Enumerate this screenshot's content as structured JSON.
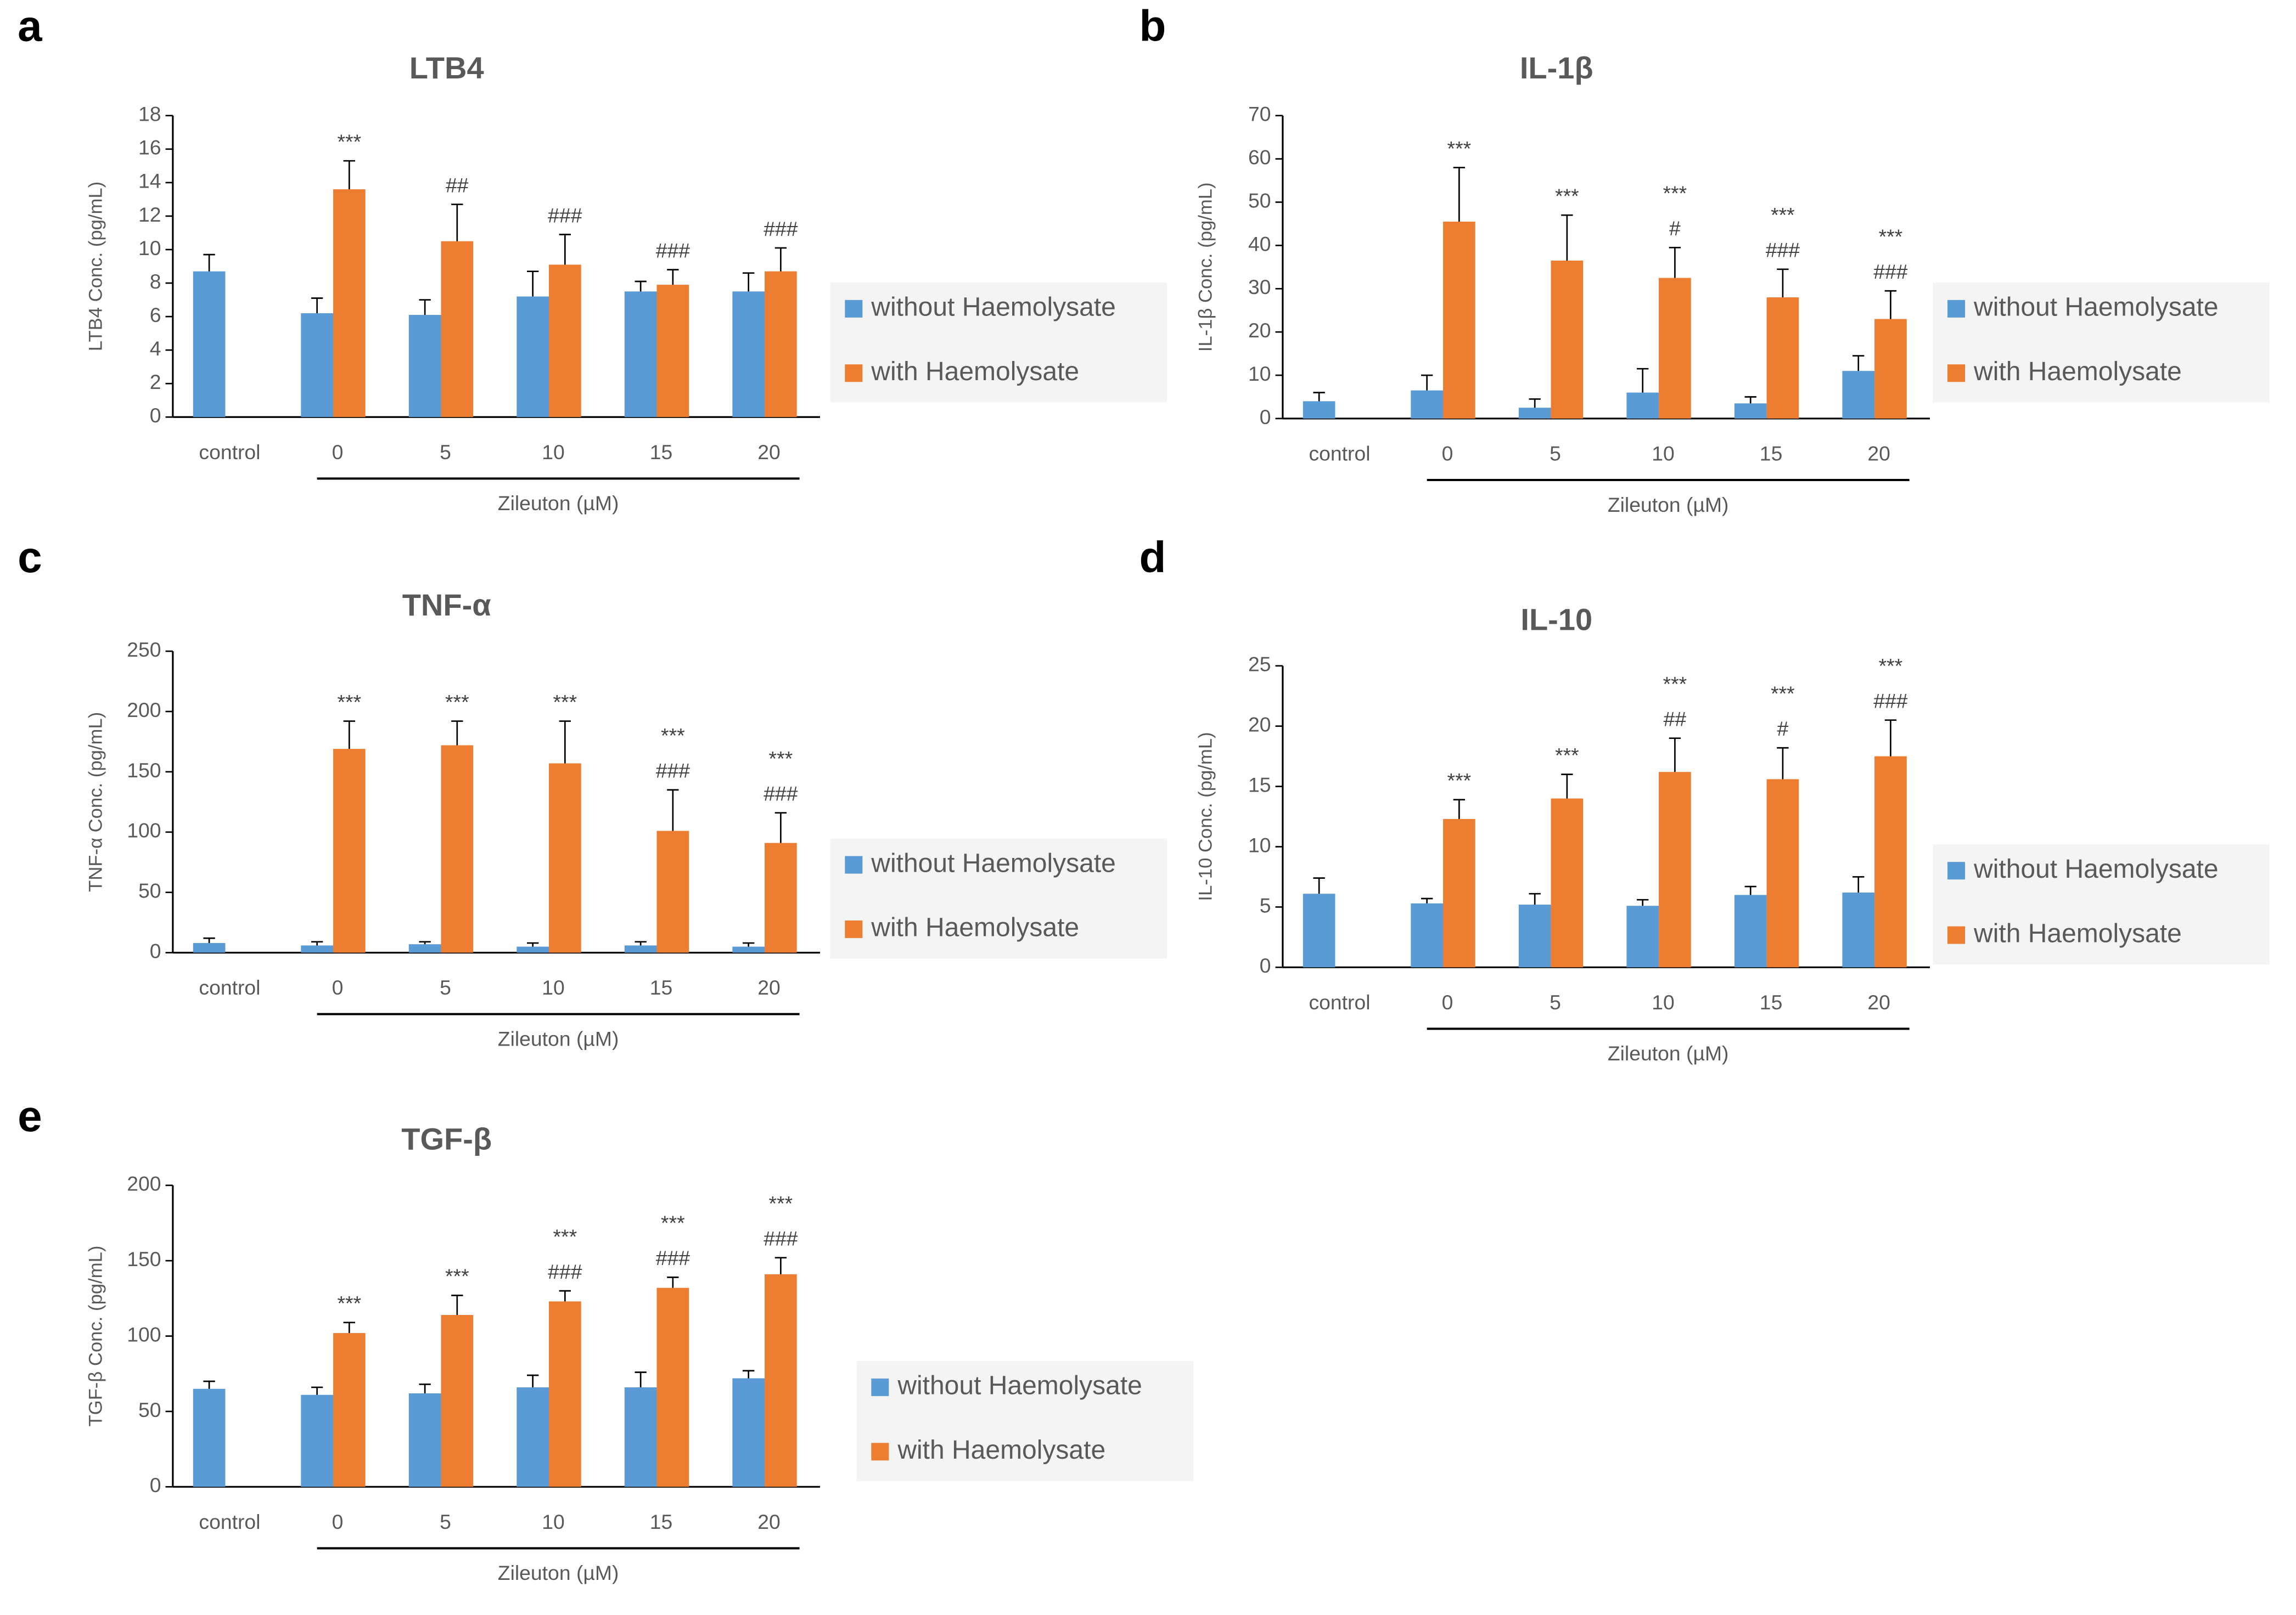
{
  "chart_data": [
    {
      "type": "bar",
      "panel": "a",
      "title": "LTB4",
      "y_label": "LTB4 Conc. (pg/mL)",
      "x_label": "Zileuton (µM)",
      "categories": [
        "control",
        "0",
        "5",
        "10",
        "15",
        "20"
      ],
      "series": [
        {
          "name": "without Haemolysate",
          "color": "#5b9bd5",
          "values": [
            8.7,
            6.2,
            6.1,
            7.2,
            7.5,
            7.5
          ],
          "errors": [
            1.0,
            0.9,
            0.9,
            1.5,
            0.6,
            1.1
          ]
        },
        {
          "name": "with Haemolysate",
          "color": "#ed7d31",
          "values": [
            null,
            13.6,
            10.5,
            9.1,
            7.9,
            8.7
          ],
          "errors": [
            null,
            1.7,
            2.2,
            1.8,
            0.9,
            1.4
          ]
        }
      ],
      "annotations": [
        null,
        [
          "***"
        ],
        [
          "##"
        ],
        [
          "###"
        ],
        [
          "###"
        ],
        [
          "###"
        ]
      ],
      "ylim": [
        0,
        18
      ],
      "yticks": [
        0,
        2,
        4,
        6,
        8,
        10,
        12,
        14,
        16,
        18
      ]
    },
    {
      "type": "bar",
      "panel": "b",
      "title": "IL-1β",
      "y_label": "IL-1β Conc. (pg/mL)",
      "x_label": "Zileuton (µM)",
      "categories": [
        "control",
        "0",
        "5",
        "10",
        "15",
        "20"
      ],
      "series": [
        {
          "name": "without Haemolysate",
          "color": "#5b9bd5",
          "values": [
            4,
            6.5,
            2.5,
            6,
            3.5,
            11
          ],
          "errors": [
            2,
            3.5,
            2,
            5.5,
            1.5,
            3.5
          ]
        },
        {
          "name": "with Haemolysate",
          "color": "#ed7d31",
          "values": [
            null,
            45.5,
            36.5,
            32.5,
            28,
            23
          ],
          "errors": [
            null,
            12.5,
            10.5,
            7,
            6.5,
            6.5
          ]
        }
      ],
      "annotations": [
        null,
        [
          "***"
        ],
        [
          "***"
        ],
        [
          "***",
          "#"
        ],
        [
          "***",
          "###"
        ],
        [
          "***",
          "###"
        ]
      ],
      "ylim": [
        0,
        70
      ],
      "yticks": [
        0,
        10,
        20,
        30,
        40,
        50,
        60,
        70
      ]
    },
    {
      "type": "bar",
      "panel": "c",
      "title": "TNF-α",
      "y_label": "TNF-α Conc. (pg/mL)",
      "x_label": "Zileuton (µM)",
      "categories": [
        "control",
        "0",
        "5",
        "10",
        "15",
        "20"
      ],
      "series": [
        {
          "name": "without Haemolysate",
          "color": "#5b9bd5",
          "values": [
            8,
            6,
            7,
            5,
            6,
            5
          ],
          "errors": [
            4,
            3,
            2,
            3,
            3,
            3
          ]
        },
        {
          "name": "with Haemolysate",
          "color": "#ed7d31",
          "values": [
            null,
            169,
            172,
            157,
            101,
            91
          ],
          "errors": [
            null,
            23,
            20,
            35,
            34,
            25
          ]
        }
      ],
      "annotations": [
        null,
        [
          "***"
        ],
        [
          "***"
        ],
        [
          "***"
        ],
        [
          "***",
          "###"
        ],
        [
          "***",
          "###"
        ]
      ],
      "ylim": [
        0,
        250
      ],
      "yticks": [
        0,
        50,
        100,
        150,
        200,
        250
      ]
    },
    {
      "type": "bar",
      "panel": "d",
      "title": "IL-10",
      "y_label": "IL-10 Conc. (pg/mL)",
      "x_label": "Zileuton (µM)",
      "categories": [
        "control",
        "0",
        "5",
        "10",
        "15",
        "20"
      ],
      "series": [
        {
          "name": "without Haemolysate",
          "color": "#5b9bd5",
          "values": [
            6.1,
            5.3,
            5.2,
            5.1,
            6,
            6.2
          ],
          "errors": [
            1.3,
            0.4,
            0.9,
            0.5,
            0.7,
            1.3
          ]
        },
        {
          "name": "with Haemolysate",
          "color": "#ed7d31",
          "values": [
            null,
            12.3,
            14,
            16.2,
            15.6,
            17.5
          ],
          "errors": [
            null,
            1.6,
            2,
            2.8,
            2.6,
            3
          ]
        }
      ],
      "annotations": [
        null,
        [
          "***"
        ],
        [
          "***"
        ],
        [
          "***",
          "##"
        ],
        [
          "***",
          "#"
        ],
        [
          "***",
          "###"
        ]
      ],
      "ylim": [
        0,
        25
      ],
      "yticks": [
        0,
        5,
        10,
        15,
        20,
        25
      ]
    },
    {
      "type": "bar",
      "panel": "e",
      "title": "TGF-β",
      "y_label": "TGF-β Conc. (pg/mL)",
      "x_label": "Zileuton (µM)",
      "categories": [
        "control",
        "0",
        "5",
        "10",
        "15",
        "20"
      ],
      "series": [
        {
          "name": "without Haemolysate",
          "color": "#5b9bd5",
          "values": [
            65,
            61,
            62,
            66,
            66,
            72
          ],
          "errors": [
            5,
            5,
            6,
            8,
            10,
            5
          ]
        },
        {
          "name": "with Haemolysate",
          "color": "#ed7d31",
          "values": [
            null,
            102,
            114,
            123,
            132,
            141
          ],
          "errors": [
            null,
            7,
            13,
            7,
            7,
            11
          ]
        }
      ],
      "annotations": [
        null,
        [
          "***"
        ],
        [
          "***"
        ],
        [
          "***",
          "###"
        ],
        [
          "***",
          "###"
        ],
        [
          "***",
          "###"
        ]
      ],
      "ylim": [
        0,
        200
      ],
      "yticks": [
        0,
        50,
        100,
        150,
        200
      ]
    }
  ]
}
